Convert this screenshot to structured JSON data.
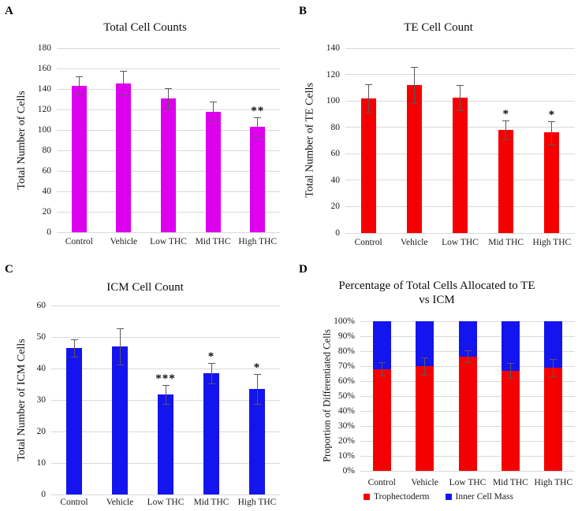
{
  "figure": {
    "background_color": "#ffffff",
    "grid_color": "#d9d9d9",
    "error_bar_color": "#595959"
  },
  "chart_data": [
    {
      "panel_letter": "A",
      "type": "bar",
      "title_lines": [
        "Total Cell Counts"
      ],
      "ylabel": "Total Number of Cells",
      "categories": [
        "Control",
        "Vehicle",
        "Low THC",
        "Mid THC",
        "High THC"
      ],
      "values": [
        143,
        145.5,
        130.5,
        118,
        103
      ],
      "errors": [
        9.5,
        12,
        10,
        9.5,
        9
      ],
      "significance": [
        "",
        "",
        "",
        "",
        "**"
      ],
      "ylim": [
        0,
        180
      ],
      "ytick_step": 20,
      "percent_ticks": false,
      "grid": true,
      "legend_position": "none",
      "bar_color": "#dd00ee"
    },
    {
      "panel_letter": "B",
      "type": "bar",
      "title_lines": [
        "TE Cell Count"
      ],
      "ylabel": "Total Number of TE Cells",
      "categories": [
        "Control",
        "Vehicle",
        "Low THC",
        "Mid THC",
        "High THC"
      ],
      "values": [
        102,
        112,
        102.5,
        78,
        76
      ],
      "errors": [
        10.5,
        13.5,
        9.5,
        7,
        8.5
      ],
      "significance": [
        "",
        "",
        "",
        "*",
        "*"
      ],
      "ylim": [
        0,
        140
      ],
      "ytick_step": 20,
      "percent_ticks": false,
      "grid": true,
      "legend_position": "none",
      "bar_color": "#f50000"
    },
    {
      "panel_letter": "C",
      "type": "bar",
      "title_lines": [
        "ICM Cell Count"
      ],
      "ylabel": "Total Number of ICM Cells",
      "categories": [
        "Control",
        "Vehicle",
        "Low THC",
        "Mid THC",
        "High THC"
      ],
      "values": [
        46.5,
        47,
        31.7,
        38.5,
        33.5
      ],
      "errors": [
        2.7,
        5.7,
        3,
        3.3,
        4.7
      ],
      "significance": [
        "",
        "",
        "***",
        "*",
        "*"
      ],
      "ylim": [
        0,
        60
      ],
      "ytick_step": 10,
      "percent_ticks": false,
      "grid": true,
      "legend_position": "none",
      "bar_color": "#1414ee"
    },
    {
      "panel_letter": "D",
      "type": "stacked_bar_percent",
      "title_lines": [
        "Percentage of Total Cells Allocated to TE",
        "vs ICM"
      ],
      "ylabel": "Proportion of Differentiated Cells",
      "categories": [
        "Control",
        "Vehicle",
        "Low THC",
        "Mid THC",
        "High THC"
      ],
      "series": [
        {
          "name": "Trophectoderm",
          "color": "#f50000",
          "values": [
            68,
            70,
            76.5,
            67,
            69
          ]
        },
        {
          "name": "Inner Cell Mass",
          "color": "#1414ee",
          "values": [
            32,
            30,
            23.5,
            33,
            31
          ]
        }
      ],
      "errors": [
        4.5,
        6,
        4,
        5,
        6
      ],
      "significance": [
        "",
        "",
        "",
        "",
        ""
      ],
      "ylim": [
        0,
        100
      ],
      "ytick_step": 10,
      "percent_ticks": true,
      "grid": true,
      "legend_position": "bottom",
      "legend": [
        {
          "label": "Trophectoderm",
          "color": "#f50000"
        },
        {
          "label": "Inner Cell Mass",
          "color": "#1414ee"
        }
      ]
    }
  ]
}
